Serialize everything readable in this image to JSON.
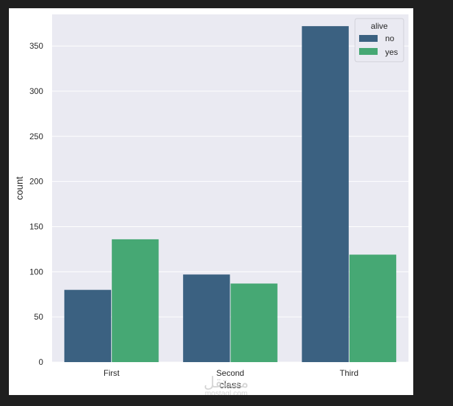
{
  "chart_data": {
    "type": "bar",
    "categories": [
      "First",
      "Second",
      "Third"
    ],
    "series": [
      {
        "name": "no",
        "values": [
          80,
          97,
          372
        ]
      },
      {
        "name": "yes",
        "values": [
          136,
          87,
          119
        ]
      }
    ],
    "xlabel": "class",
    "ylabel": "count",
    "ylim": [
      0,
      385
    ],
    "yticks": [
      0,
      50,
      100,
      150,
      200,
      250,
      300,
      350
    ],
    "legend": {
      "title": "alive",
      "placement": "top-right"
    },
    "grid": true,
    "colors": {
      "no": "#3b6181",
      "yes": "#46a874",
      "background": "#eaeaf2",
      "grid": "#ffffff"
    }
  },
  "watermark": {
    "line1": "مستقل",
    "line2": "mostaql.com"
  }
}
